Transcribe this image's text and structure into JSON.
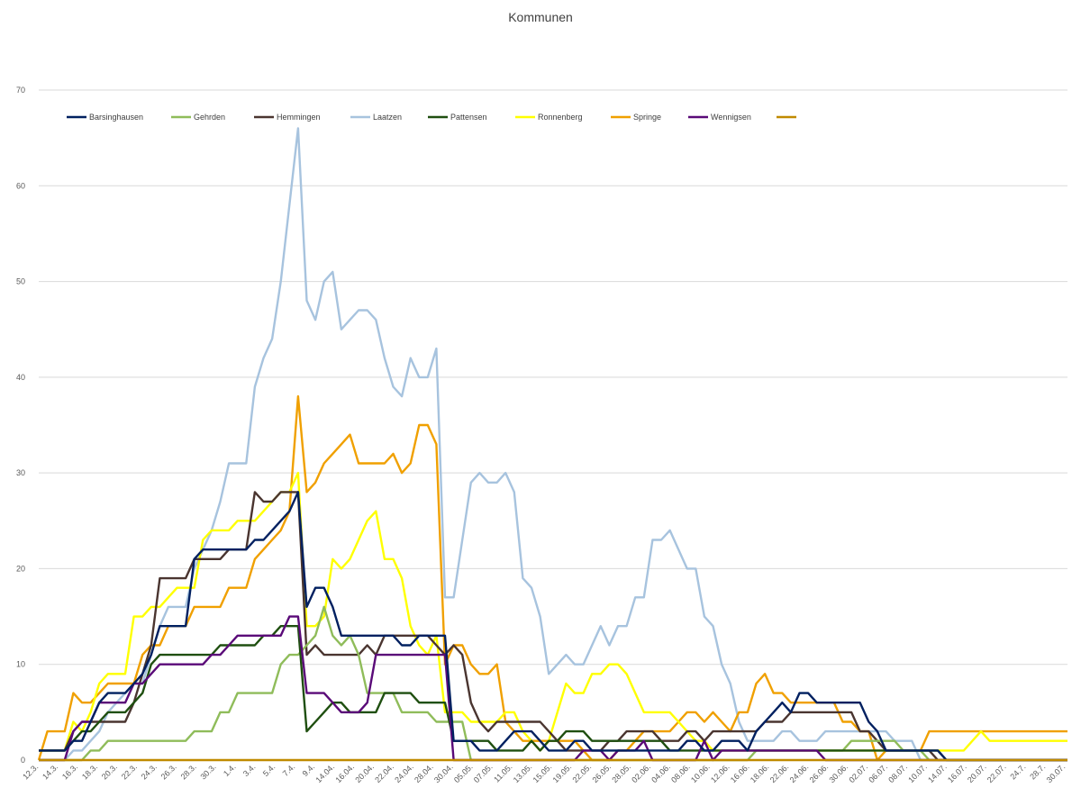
{
  "chart_data": {
    "type": "line",
    "title": "Kommunen",
    "xlabel": "",
    "ylabel": "",
    "ylim": [
      0,
      70
    ],
    "y_ticks": [
      0,
      10,
      20,
      30,
      40,
      50,
      60,
      70
    ],
    "grid": "horizontal",
    "legend_position": "top-left",
    "x_tick_labels": [
      "12.3.",
      "14.3.",
      "16.3.",
      "18.3.",
      "20.3.",
      "22.3.",
      "24.3.",
      "26.3.",
      "28.3.",
      "30.3.",
      "1.4.",
      "3.4.",
      "5.4.",
      "7.4.",
      "9.4.",
      "14.04.",
      "16.04.",
      "20.04.",
      "22.04.",
      "24.04.",
      "28.04.",
      "30.04.",
      "05.05.",
      "07.05.",
      "11.05.",
      "13.05.",
      "15.05.",
      "19.05.",
      "22.05.",
      "26.05.",
      "28.05.",
      "02.06.",
      "04.06.",
      "08.06.",
      "10.06.",
      "12.06.",
      "16.06.",
      "18.06.",
      "22.06.",
      "24.06.",
      "26.06.",
      "30.06.",
      "02.07.",
      "06.07.",
      "08.07.",
      "10.07.",
      "14.07.",
      "16.07.",
      "20.07.",
      "22.07.",
      "24.7.",
      "28.7.",
      "30.07."
    ],
    "series": [
      {
        "name": "Barsinghausen",
        "color": "#002060",
        "values": [
          1,
          1,
          1,
          1,
          2,
          2,
          4,
          6,
          7,
          7,
          7,
          8,
          9,
          11,
          14,
          14,
          14,
          14,
          21,
          22,
          22,
          22,
          22,
          22,
          22,
          23,
          23,
          24,
          25,
          26,
          28,
          16,
          18,
          18,
          16,
          13,
          13,
          13,
          13,
          13,
          13,
          13,
          12,
          12,
          13,
          13,
          13,
          13,
          2,
          2,
          2,
          1,
          1,
          1,
          2,
          3,
          3,
          3,
          2,
          1,
          1,
          1,
          2,
          2,
          1,
          1,
          1,
          1,
          1,
          1,
          1,
          1,
          1,
          1,
          1,
          2,
          2,
          1,
          1,
          2,
          2,
          2,
          1,
          3,
          4,
          5,
          6,
          5,
          7,
          7,
          6,
          6,
          6,
          6,
          6,
          6,
          4,
          3,
          1,
          1,
          1,
          1,
          1,
          1,
          1,
          0,
          0,
          0,
          0,
          0,
          0,
          0,
          0,
          0,
          0,
          0,
          0,
          0,
          0,
          0
        ]
      },
      {
        "name": "Gehrden",
        "color": "#8fbc5a",
        "values": [
          0,
          0,
          0,
          0,
          0,
          0,
          1,
          1,
          2,
          2,
          2,
          2,
          2,
          2,
          2,
          2,
          2,
          2,
          3,
          3,
          3,
          5,
          5,
          7,
          7,
          7,
          7,
          7,
          10,
          11,
          11,
          12,
          13,
          16,
          13,
          12,
          13,
          11,
          7,
          7,
          7,
          7,
          5,
          5,
          5,
          5,
          4,
          4,
          4,
          4,
          0,
          0,
          0,
          0,
          0,
          0,
          0,
          0,
          0,
          0,
          0,
          0,
          0,
          0,
          0,
          0,
          0,
          0,
          0,
          0,
          0,
          0,
          0,
          0,
          0,
          0,
          0,
          0,
          0,
          0,
          0,
          0,
          0,
          1,
          1,
          1,
          1,
          1,
          1,
          1,
          1,
          1,
          1,
          1,
          2,
          2,
          2,
          2,
          2,
          2,
          1,
          1,
          1,
          0,
          0,
          0,
          0,
          0,
          0,
          0,
          0,
          0,
          0,
          0,
          0,
          0,
          0,
          0,
          0,
          0
        ]
      },
      {
        "name": "Hemmingen",
        "color": "#4a3530",
        "values": [
          1,
          1,
          1,
          1,
          3,
          4,
          4,
          4,
          4,
          4,
          4,
          6,
          9,
          12,
          19,
          19,
          19,
          19,
          21,
          21,
          21,
          21,
          22,
          22,
          22,
          28,
          27,
          27,
          28,
          28,
          28,
          11,
          12,
          11,
          11,
          11,
          11,
          11,
          12,
          11,
          13,
          13,
          13,
          13,
          13,
          13,
          12,
          11,
          12,
          11,
          6,
          4,
          3,
          4,
          4,
          4,
          4,
          4,
          4,
          3,
          2,
          1,
          1,
          1,
          1,
          1,
          2,
          2,
          3,
          3,
          3,
          3,
          2,
          2,
          2,
          3,
          3,
          2,
          3,
          3,
          3,
          3,
          3,
          3,
          4,
          4,
          4,
          5,
          5,
          5,
          5,
          5,
          5,
          5,
          5,
          3,
          3,
          2,
          1,
          1,
          1,
          1,
          1,
          1,
          0,
          0,
          0,
          0,
          0,
          0,
          0,
          0,
          0,
          0,
          0,
          0,
          0,
          0,
          0,
          0
        ]
      },
      {
        "name": "Laatzen",
        "color": "#a7c3de",
        "values": [
          0,
          0,
          0,
          0,
          1,
          1,
          2,
          3,
          5,
          6,
          7,
          8,
          8,
          11,
          14,
          16,
          16,
          16,
          20,
          22,
          24,
          27,
          31,
          31,
          31,
          39,
          42,
          44,
          50,
          58,
          66,
          48,
          46,
          50,
          51,
          45,
          46,
          47,
          47,
          46,
          42,
          39,
          38,
          42,
          40,
          40,
          43,
          17,
          17,
          23,
          29,
          30,
          29,
          29,
          30,
          28,
          19,
          18,
          15,
          9,
          10,
          11,
          10,
          10,
          12,
          14,
          12,
          14,
          14,
          17,
          17,
          23,
          23,
          24,
          22,
          20,
          20,
          15,
          14,
          10,
          8,
          4,
          2,
          2,
          2,
          2,
          3,
          3,
          2,
          2,
          2,
          3,
          3,
          3,
          3,
          3,
          3,
          3,
          3,
          2,
          2,
          2,
          0,
          0,
          0,
          0,
          0,
          0,
          0,
          0,
          0,
          0,
          0,
          0,
          0,
          0,
          0,
          0,
          0,
          0
        ]
      },
      {
        "name": "Pattensen",
        "color": "#1f4f10",
        "values": [
          1,
          1,
          1,
          1,
          2,
          3,
          3,
          4,
          5,
          5,
          5,
          6,
          7,
          10,
          11,
          11,
          11,
          11,
          11,
          11,
          11,
          12,
          12,
          12,
          12,
          12,
          13,
          13,
          14,
          14,
          14,
          3,
          4,
          5,
          6,
          6,
          5,
          5,
          5,
          5,
          7,
          7,
          7,
          7,
          6,
          6,
          6,
          6,
          2,
          2,
          2,
          2,
          2,
          1,
          1,
          1,
          1,
          2,
          1,
          2,
          2,
          3,
          3,
          3,
          2,
          2,
          2,
          2,
          2,
          2,
          2,
          2,
          2,
          1,
          1,
          1,
          1,
          1,
          1,
          1,
          1,
          1,
          1,
          1,
          1,
          1,
          1,
          1,
          1,
          1,
          1,
          1,
          1,
          1,
          1,
          1,
          1,
          1,
          1,
          1,
          1,
          1,
          1,
          1,
          1,
          0,
          0,
          0,
          0,
          0,
          0,
          0,
          0,
          0,
          0,
          0,
          0,
          0,
          0,
          0
        ]
      },
      {
        "name": "Ronnenberg",
        "color": "#ffff00",
        "values": [
          1,
          1,
          1,
          1,
          4,
          3,
          5,
          8,
          9,
          9,
          9,
          15,
          15,
          16,
          16,
          17,
          18,
          18,
          18,
          23,
          24,
          24,
          24,
          25,
          25,
          25,
          26,
          27,
          28,
          28,
          30,
          14,
          14,
          15,
          21,
          20,
          21,
          23,
          25,
          26,
          21,
          21,
          19,
          14,
          12,
          11,
          13,
          5,
          5,
          5,
          4,
          4,
          4,
          4,
          5,
          5,
          3,
          2,
          1,
          2,
          5,
          8,
          7,
          7,
          9,
          9,
          10,
          10,
          9,
          7,
          5,
          5,
          5,
          5,
          4,
          3,
          2,
          2,
          1,
          1,
          1,
          1,
          1,
          1,
          1,
          1,
          1,
          1,
          1,
          1,
          1,
          1,
          1,
          1,
          1,
          1,
          1,
          1,
          1,
          1,
          1,
          1,
          1,
          1,
          1,
          1,
          1,
          1,
          2,
          3,
          2,
          2,
          2,
          2,
          2,
          2,
          2,
          2,
          2,
          2
        ]
      },
      {
        "name": "Springe",
        "color": "#f0a000",
        "values": [
          0,
          3,
          3,
          3,
          7,
          6,
          6,
          7,
          8,
          8,
          8,
          8,
          11,
          12,
          12,
          14,
          14,
          14,
          16,
          16,
          16,
          16,
          18,
          18,
          18,
          21,
          22,
          23,
          24,
          26,
          38,
          28,
          29,
          31,
          32,
          33,
          34,
          31,
          31,
          31,
          31,
          32,
          30,
          31,
          35,
          35,
          33,
          10,
          12,
          12,
          10,
          9,
          9,
          10,
          4,
          3,
          2,
          2,
          2,
          2,
          2,
          2,
          2,
          1,
          0,
          0,
          0,
          1,
          1,
          2,
          3,
          3,
          3,
          3,
          4,
          5,
          5,
          4,
          5,
          4,
          3,
          5,
          5,
          8,
          9,
          7,
          7,
          6,
          6,
          6,
          6,
          6,
          6,
          4,
          4,
          3,
          3,
          0,
          1,
          1,
          1,
          1,
          1,
          3,
          3,
          3,
          3,
          3,
          3,
          3,
          3,
          3,
          3,
          3,
          3,
          3,
          3,
          3,
          3,
          3
        ]
      },
      {
        "name": "Wennigsen",
        "color": "#5a0a78",
        "values": [
          0,
          0,
          0,
          0,
          3,
          4,
          4,
          6,
          6,
          6,
          6,
          8,
          8,
          9,
          10,
          10,
          10,
          10,
          10,
          10,
          11,
          11,
          12,
          13,
          13,
          13,
          13,
          13,
          13,
          15,
          15,
          7,
          7,
          7,
          6,
          5,
          5,
          5,
          6,
          11,
          11,
          11,
          11,
          11,
          11,
          11,
          11,
          11,
          0,
          0,
          0,
          0,
          0,
          0,
          0,
          0,
          0,
          0,
          0,
          0,
          0,
          0,
          0,
          1,
          1,
          1,
          0,
          1,
          1,
          1,
          2,
          0,
          0,
          0,
          0,
          0,
          0,
          2,
          0,
          1,
          1,
          1,
          1,
          1,
          1,
          1,
          1,
          1,
          1,
          1,
          1,
          0,
          0,
          0,
          0,
          0,
          0,
          0,
          0,
          0,
          0,
          0,
          0,
          0,
          0,
          0,
          0,
          0,
          0,
          0,
          0,
          0,
          0,
          0,
          0,
          0,
          0,
          0,
          0,
          0
        ]
      },
      {
        "name": "",
        "color": "#c08a00",
        "values": [
          0,
          0,
          0,
          0,
          0,
          0,
          0,
          0,
          0,
          0,
          0,
          0,
          0,
          0,
          0,
          0,
          0,
          0,
          0,
          0,
          0,
          0,
          0,
          0,
          0,
          0,
          0,
          0,
          0,
          0,
          0,
          0,
          0,
          0,
          0,
          0,
          0,
          0,
          0,
          0,
          0,
          0,
          0,
          0,
          0,
          0,
          0,
          0,
          0,
          0,
          0,
          0,
          0,
          0,
          0,
          0,
          0,
          0,
          0,
          0,
          0,
          0,
          0,
          0,
          0,
          0,
          0,
          0,
          0,
          0,
          0,
          0,
          0,
          0,
          0,
          0,
          0,
          0,
          0,
          0,
          0,
          0,
          0,
          0,
          0,
          0,
          0,
          0,
          0,
          0,
          0,
          0,
          0,
          0,
          0,
          0,
          0,
          0,
          0,
          0,
          0,
          0,
          0,
          0,
          0,
          0,
          0,
          0,
          0,
          0,
          0,
          0,
          0,
          0,
          0,
          0,
          0,
          0,
          0,
          0
        ]
      }
    ]
  }
}
